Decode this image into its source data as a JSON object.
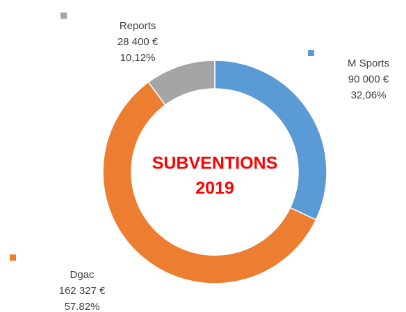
{
  "chart_data": {
    "type": "donut",
    "title": [
      "SUBVENTIONS",
      "2019"
    ],
    "categories": [
      "M Sports",
      "Dgac",
      "Reports"
    ],
    "values": [
      90000,
      162327,
      28400
    ],
    "value_labels": [
      "90 000 €",
      "162 327 €",
      "28 400 €"
    ],
    "percentages": [
      32.06,
      57.82,
      10.12
    ],
    "percentage_labels": [
      "32,06%",
      "57.82%",
      "10,12%"
    ],
    "colors": [
      "#5b9bd5",
      "#ed7d31",
      "#a5a5a5"
    ]
  }
}
